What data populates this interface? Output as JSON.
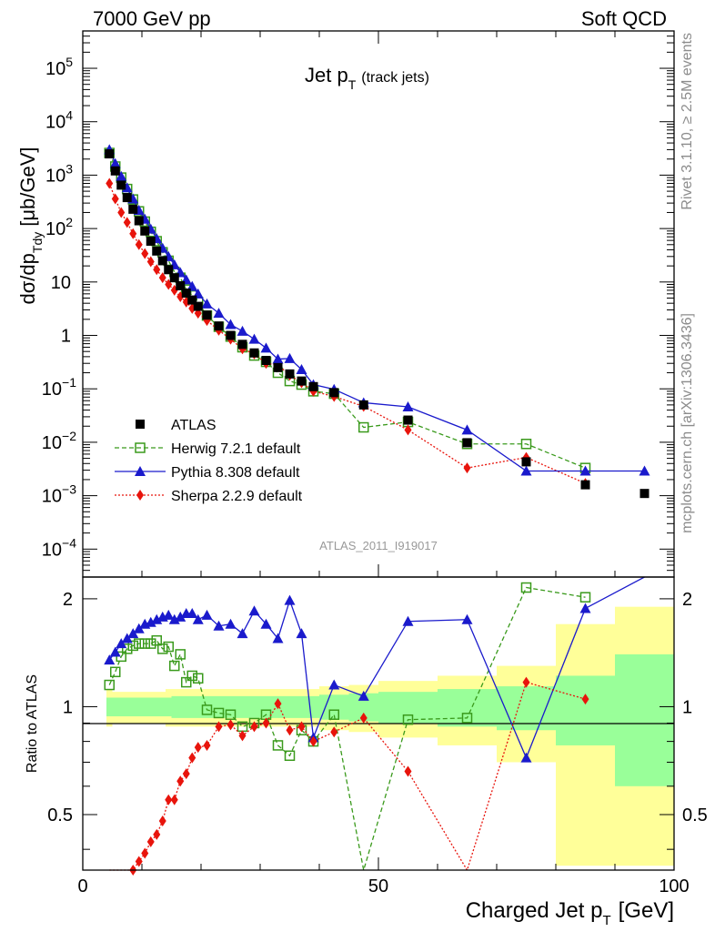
{
  "header": {
    "left": "7000 GeV pp",
    "right": "Soft QCD"
  },
  "side_labels": {
    "rivet": "Rivet 3.1.10, ≥ 2.5M events",
    "mcplots": "mcplots.cern.ch [arXiv:1306.3436]"
  },
  "watermark": "ATLAS_2011_I919017",
  "chart_data": {
    "type": "scatter",
    "title_main": "Jet p",
    "title_sub": "T",
    "title_extra": "(track jets)",
    "ylabel_top": "dσ/dp",
    "ylabel_top_sub": "Tdy",
    "ylabel_top_unit": "[μb/GeV]",
    "ylabel_bottom": "Ratio to ATLAS",
    "xlabel": "Charged Jet p",
    "xlabel_sub": "T",
    "xlabel_unit": "[GeV]",
    "xlim": [
      0,
      100
    ],
    "ylim_top": [
      3e-05,
      500000
    ],
    "yscale_top": "log",
    "ylim_bottom": [
      0.35,
      2.3
    ],
    "yscale_bottom": "log",
    "legend_position": "lower-left",
    "x_ticks": [
      "0",
      "50",
      "100"
    ],
    "top_y_ticks": [
      {
        "v": 100000,
        "b": "10",
        "e": "5"
      },
      {
        "v": 10000,
        "b": "10",
        "e": "4"
      },
      {
        "v": 1000,
        "b": "10",
        "e": "3"
      },
      {
        "v": 100,
        "b": "10",
        "e": "2"
      },
      {
        "v": 10,
        "b": "10",
        "e": ""
      },
      {
        "v": 1,
        "b": "1",
        "e": ""
      },
      {
        "v": 0.1,
        "b": "10",
        "e": "−1"
      },
      {
        "v": 0.01,
        "b": "10",
        "e": "−2"
      },
      {
        "v": 0.001,
        "b": "10",
        "e": "−3"
      },
      {
        "v": 0.0001,
        "b": "10",
        "e": "−4"
      }
    ],
    "bottom_y_ticks": [
      {
        "v": 2,
        "t": "2"
      },
      {
        "v": 1,
        "t": "1"
      },
      {
        "v": 0.5,
        "t": "0.5"
      }
    ],
    "band_edges": [
      4,
      5,
      6,
      7,
      8,
      9,
      10,
      11,
      12,
      13,
      14,
      15,
      16,
      17,
      18,
      19,
      20,
      22,
      24,
      26,
      28,
      30,
      32,
      34,
      36,
      38,
      40,
      45,
      50,
      60,
      70,
      80,
      90,
      100
    ],
    "band_green": [
      0.06,
      0.06,
      0.06,
      0.06,
      0.06,
      0.06,
      0.06,
      0.06,
      0.06,
      0.06,
      0.06,
      0.07,
      0.07,
      0.07,
      0.07,
      0.07,
      0.07,
      0.07,
      0.07,
      0.07,
      0.07,
      0.07,
      0.07,
      0.07,
      0.07,
      0.07,
      0.08,
      0.09,
      0.1,
      0.12,
      0.14,
      0.22,
      0.4
    ],
    "band_yellow": [
      0.12,
      0.1,
      0.1,
      0.1,
      0.1,
      0.1,
      0.1,
      0.1,
      0.1,
      0.1,
      0.12,
      0.12,
      0.12,
      0.12,
      0.12,
      0.12,
      0.12,
      0.12,
      0.12,
      0.12,
      0.12,
      0.12,
      0.12,
      0.12,
      0.12,
      0.12,
      0.14,
      0.15,
      0.18,
      0.22,
      0.3,
      0.7,
      0.9
    ],
    "series": [
      {
        "name": "ATLAS",
        "color": "#000000",
        "marker": "square-filled",
        "x": [
          4.5,
          5.5,
          6.5,
          7.5,
          8.5,
          9.5,
          10.5,
          11.5,
          12.5,
          13.5,
          14.5,
          15.5,
          16.5,
          17.5,
          18.5,
          19.5,
          21,
          23,
          25,
          27,
          29,
          31,
          33,
          35,
          37,
          39,
          42.5,
          47.5,
          55,
          65,
          75,
          85,
          95
        ],
        "y": [
          2500,
          1200,
          650,
          380,
          230,
          140,
          90,
          58,
          38,
          25,
          17,
          12,
          8.5,
          6.2,
          4.6,
          3.5,
          2.4,
          1.5,
          1.0,
          0.68,
          0.47,
          0.34,
          0.25,
          0.19,
          0.14,
          0.11,
          0.085,
          0.05,
          0.026,
          0.0098,
          0.0043,
          0.0016,
          0.0011
        ]
      },
      {
        "name": "Herwig 7.2.1 default",
        "color": "#3a9a1c",
        "marker": "square-open",
        "line": "dashed",
        "x": [
          4.5,
          5.5,
          6.5,
          7.5,
          8.5,
          9.5,
          10.5,
          11.5,
          12.5,
          13.5,
          14.5,
          15.5,
          16.5,
          17.5,
          18.5,
          19.5,
          21,
          23,
          25,
          27,
          29,
          31,
          33,
          35,
          37,
          39,
          42.5,
          47.5,
          55,
          65,
          75,
          85
        ],
        "y": [
          2600,
          1450,
          900,
          550,
          350,
          210,
          135,
          87,
          58,
          36,
          25,
          15.5,
          12,
          7.2,
          5.6,
          4.2,
          2.35,
          1.45,
          0.95,
          0.6,
          0.42,
          0.32,
          0.2,
          0.14,
          0.12,
          0.09,
          0.081,
          0.019,
          0.024,
          0.0093,
          0.0093,
          0.0033
        ],
        "ratio": [
          1.15,
          1.25,
          1.38,
          1.45,
          1.48,
          1.5,
          1.5,
          1.5,
          1.53,
          1.45,
          1.47,
          1.3,
          1.4,
          1.17,
          1.22,
          1.2,
          0.98,
          0.96,
          0.95,
          0.88,
          0.9,
          0.95,
          0.78,
          0.73,
          0.86,
          0.8,
          0.95,
          0.3,
          0.92,
          0.93,
          2.15,
          2.02
        ]
      },
      {
        "name": "Pythia 8.308 default",
        "color": "#1a1acc",
        "marker": "triangle",
        "line": "solid",
        "x": [
          4.5,
          5.5,
          6.5,
          7.5,
          8.5,
          9.5,
          10.5,
          11.5,
          12.5,
          13.5,
          14.5,
          15.5,
          16.5,
          17.5,
          18.5,
          19.5,
          21,
          23,
          25,
          27,
          29,
          31,
          33,
          35,
          37,
          39,
          42.5,
          47.5,
          55,
          65,
          75,
          85,
          95
        ],
        "y": [
          3000,
          1650,
          950,
          580,
          360,
          220,
          150,
          98,
          65,
          43,
          30,
          21,
          15,
          11,
          8.3,
          6.0,
          3.9,
          2.6,
          1.6,
          1.2,
          0.85,
          0.58,
          0.36,
          0.37,
          0.23,
          0.12,
          0.098,
          0.055,
          0.046,
          0.017,
          0.0029,
          0.0029,
          0.0029
        ],
        "ratio": [
          1.35,
          1.42,
          1.5,
          1.55,
          1.6,
          1.65,
          1.7,
          1.72,
          1.75,
          1.78,
          1.8,
          1.75,
          1.78,
          1.82,
          1.82,
          1.75,
          1.8,
          1.68,
          1.7,
          1.6,
          1.85,
          1.7,
          1.55,
          1.98,
          1.6,
          0.82,
          1.15,
          1.07,
          1.73,
          1.75,
          0.72,
          1.88,
          2.8
        ]
      },
      {
        "name": "Sherpa 2.2.9 default",
        "color": "#e8140c",
        "marker": "diamond",
        "line": "dotted",
        "x": [
          4.5,
          5.5,
          6.5,
          7.5,
          8.5,
          9.5,
          10.5,
          11.5,
          12.5,
          13.5,
          14.5,
          15.5,
          16.5,
          17.5,
          18.5,
          19.5,
          21,
          23,
          25,
          27,
          29,
          31,
          33,
          35,
          37,
          39,
          42.5,
          47.5,
          55,
          65,
          75,
          85
        ],
        "y": [
          700,
          360,
          200,
          130,
          80,
          50,
          34,
          24,
          17,
          12,
          9,
          7,
          5.3,
          4.2,
          3.2,
          2.6,
          1.9,
          1.25,
          0.85,
          0.56,
          0.45,
          0.3,
          0.28,
          0.18,
          0.13,
          0.09,
          0.072,
          0.047,
          0.017,
          0.0033,
          0.0052,
          0.0017
        ],
        "ratio": [
          0.28,
          0.3,
          0.31,
          0.34,
          0.35,
          0.37,
          0.39,
          0.42,
          0.44,
          0.48,
          0.55,
          0.55,
          0.62,
          0.65,
          0.72,
          0.77,
          0.78,
          0.88,
          0.89,
          0.83,
          0.88,
          0.9,
          1.02,
          0.86,
          0.88,
          0.8,
          0.85,
          0.93,
          0.66,
          0.33,
          1.17,
          1.05
        ]
      }
    ]
  }
}
